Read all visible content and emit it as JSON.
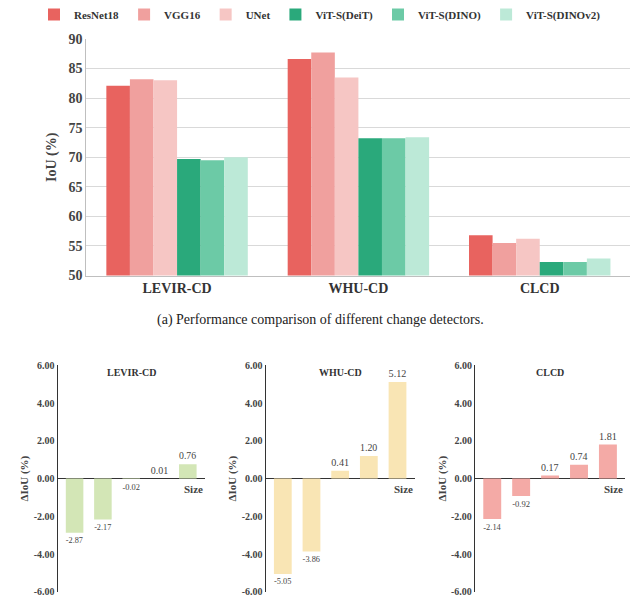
{
  "chart_data": [
    {
      "type": "bar",
      "caption": "(a) Performance comparison of different change detectors.",
      "y_label": "IoU (%)",
      "categories": [
        "LEVIR-CD",
        "WHU-CD",
        "CLCD"
      ],
      "series": [
        {
          "name": "ResNet18",
          "color": "#e8635f",
          "values": [
            82.1,
            86.6,
            56.8
          ]
        },
        {
          "name": "VGG16",
          "color": "#f0a09e",
          "values": [
            83.2,
            87.7,
            55.5
          ]
        },
        {
          "name": "UNet",
          "color": "#f6c6c4",
          "values": [
            83.0,
            83.5,
            56.2
          ]
        },
        {
          "name": "ViT-S(DeiT)",
          "color": "#2aa97b",
          "values": [
            69.7,
            73.2,
            52.3
          ]
        },
        {
          "name": "ViT-S(DINO)",
          "color": "#6ccaa6",
          "values": [
            69.5,
            73.2,
            52.3
          ]
        },
        {
          "name": "ViT-S(DINOv2)",
          "color": "#bce9d7",
          "values": [
            70.0,
            73.4,
            52.9
          ]
        }
      ],
      "ylim": [
        50,
        90
      ],
      "yticks": [
        50,
        55,
        60,
        65,
        70,
        75,
        80,
        85,
        90
      ],
      "grid": true,
      "legend": "top"
    },
    {
      "type": "bar",
      "title": "LEVIR-CD",
      "y_label": "ΔIoU (%)",
      "x_label": "Size",
      "categories": [
        null,
        null,
        null,
        null,
        null
      ],
      "values": [
        -2.87,
        -2.17,
        -0.02,
        0.01,
        0.76
      ],
      "value_labels": [
        "-2.87",
        "-2.17",
        "-0.02",
        "0.01",
        "0.76"
      ],
      "color": "#d3e6b6",
      "ylim": [
        -6,
        6
      ],
      "yticks": [
        {
          "value": -6,
          "label": "-6.00"
        },
        {
          "value": -4,
          "label": "-4.00"
        },
        {
          "value": -2,
          "label": "-2.00"
        },
        {
          "value": 0,
          "label": "0.00"
        },
        {
          "value": 2,
          "label": "2.00"
        },
        {
          "value": 4,
          "label": "4.00"
        },
        {
          "value": 6,
          "label": "6.00"
        }
      ],
      "data_labels": true,
      "tick_labels": "y",
      "grid": false
    },
    {
      "type": "bar",
      "title": "WHU-CD",
      "y_label": "ΔIoU (%)",
      "x_label": "Size",
      "categories": [
        null,
        null,
        null,
        null,
        null
      ],
      "values": [
        -5.05,
        -3.86,
        0.41,
        1.2,
        5.12
      ],
      "value_labels": [
        "-5.05",
        "-3.86",
        "0.41",
        "1.20",
        "5.12"
      ],
      "color": "#f9e5b4",
      "ylim": [
        -6,
        6
      ],
      "yticks": [
        {
          "value": -6,
          "label": "-6.00"
        },
        {
          "value": -4,
          "label": "-4.00"
        },
        {
          "value": -2,
          "label": "-2.00"
        },
        {
          "value": 0,
          "label": "0.00"
        },
        {
          "value": 2,
          "label": "2.00"
        },
        {
          "value": 4,
          "label": "4.00"
        },
        {
          "value": 6,
          "label": "6.00"
        }
      ],
      "data_labels": true,
      "tick_labels": "y",
      "grid": false
    },
    {
      "type": "bar",
      "title": "CLCD",
      "y_label": "ΔIoU (%)",
      "x_label": "Size",
      "categories": [
        null,
        null,
        null,
        null,
        null
      ],
      "values": [
        -2.14,
        -0.92,
        0.17,
        0.74,
        1.81
      ],
      "value_labels": [
        "-2.14",
        "-0.92",
        "0.17",
        "0.74",
        "1.81"
      ],
      "color": "#f4aaa6",
      "ylim": [
        -6,
        6
      ],
      "yticks": [
        {
          "value": -6,
          "label": "-6.00"
        },
        {
          "value": -4,
          "label": "-4.00"
        },
        {
          "value": -2,
          "label": "-2.00"
        },
        {
          "value": 0,
          "label": "0.00"
        },
        {
          "value": 2,
          "label": "2.00"
        },
        {
          "value": 4,
          "label": "4.00"
        },
        {
          "value": 6,
          "label": "6.00"
        }
      ],
      "data_labels": true,
      "tick_labels": "y",
      "grid": false
    }
  ]
}
